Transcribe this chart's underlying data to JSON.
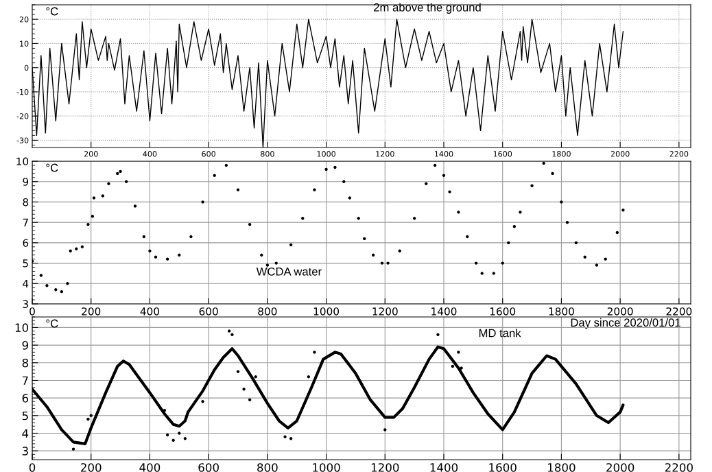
{
  "chart_data": [
    {
      "type": "line",
      "title": "2m above the ground",
      "ylabel": "°C",
      "xlim": [
        0,
        2240
      ],
      "ylim": [
        -33,
        26
      ],
      "xticks": [
        200,
        400,
        600,
        800,
        1000,
        1200,
        1400,
        1600,
        1800,
        2000,
        2200
      ],
      "yticks": [
        -30,
        -20,
        -10,
        0,
        10,
        20
      ],
      "grid": true,
      "series": [
        {
          "color": "#000000",
          "x": [
            0,
            15,
            30,
            45,
            60,
            80,
            100,
            125,
            150,
            160,
            170,
            185,
            200,
            225,
            250,
            255,
            260,
            280,
            300,
            315,
            330,
            355,
            380,
            400,
            420,
            440,
            460,
            475,
            490,
            495,
            500,
            525,
            550,
            575,
            600,
            620,
            640,
            650,
            660,
            680,
            700,
            720,
            740,
            755,
            770,
            785,
            800,
            825,
            850,
            875,
            900,
            920,
            940,
            970,
            1000,
            1015,
            1030,
            1045,
            1060,
            1075,
            1090,
            1110,
            1130,
            1165,
            1200,
            1220,
            1240,
            1270,
            1300,
            1325,
            1350,
            1375,
            1400,
            1425,
            1450,
            1475,
            1500,
            1525,
            1550,
            1575,
            1600,
            1630,
            1660,
            1665,
            1670,
            1685,
            1700,
            1730,
            1760,
            1780,
            1800,
            1815,
            1830,
            1855,
            1880,
            1905,
            1930,
            1955,
            1980,
            1995,
            2010
          ],
          "values": [
            0,
            -28,
            5,
            -27,
            8,
            -22,
            10,
            -15,
            14,
            -5,
            19,
            0,
            16,
            3,
            13,
            3,
            10,
            -1,
            12,
            -15,
            5,
            -18,
            7,
            -22,
            6,
            -19,
            8,
            -15,
            11,
            -10,
            18,
            0,
            19,
            3,
            16,
            1,
            14,
            -2,
            10,
            -9,
            5,
            -18,
            0,
            -25,
            2,
            -33,
            3,
            -20,
            10,
            -10,
            18,
            0,
            20,
            2,
            13,
            0,
            12,
            -8,
            5,
            -15,
            3,
            -27,
            8,
            -18,
            12,
            -8,
            20,
            0,
            16,
            3,
            15,
            2,
            10,
            -10,
            3,
            -20,
            0,
            -26,
            5,
            -18,
            15,
            -5,
            15,
            3,
            17,
            2,
            20,
            -2,
            10,
            -10,
            5,
            -20,
            0,
            -28,
            3,
            -20,
            10,
            -10,
            18,
            0,
            15
          ]
        }
      ]
    },
    {
      "type": "scatter",
      "title": "WCDA water",
      "ylabel": "°C",
      "xlabel": "Day since 2020/01/01",
      "xlim": [
        0,
        2240
      ],
      "ylim": [
        3,
        10
      ],
      "xticks": [
        0,
        200,
        400,
        600,
        800,
        1000,
        1200,
        1400,
        1600,
        1800,
        2000,
        2200
      ],
      "yticks": [
        3,
        4,
        5,
        6,
        7,
        8,
        9,
        10
      ],
      "grid": true,
      "series": [
        {
          "color": "#000000",
          "x": [
            0,
            30,
            50,
            80,
            100,
            120,
            130,
            150,
            170,
            190,
            205,
            210,
            240,
            260,
            290,
            300,
            320,
            350,
            380,
            400,
            420,
            460,
            500,
            540,
            580,
            620,
            660,
            700,
            740,
            780,
            800,
            830,
            880,
            920,
            960,
            1000,
            1030,
            1060,
            1080,
            1110,
            1130,
            1160,
            1190,
            1210,
            1250,
            1300,
            1340,
            1370,
            1400,
            1420,
            1450,
            1480,
            1510,
            1530,
            1570,
            1600,
            1620,
            1640,
            1660,
            1700,
            1740,
            1770,
            1800,
            1820,
            1850,
            1880,
            1920,
            1950,
            1990,
            2010
          ],
          "values": [
            5.1,
            4.4,
            3.9,
            3.7,
            3.6,
            4.0,
            5.6,
            5.7,
            5.8,
            6.9,
            7.3,
            8.2,
            8.3,
            8.9,
            9.4,
            9.5,
            9.0,
            7.8,
            6.3,
            5.6,
            5.3,
            5.2,
            5.4,
            6.3,
            8.0,
            9.3,
            9.8,
            8.6,
            6.9,
            5.4,
            4.9,
            5.0,
            5.9,
            7.2,
            8.6,
            9.6,
            9.7,
            9.0,
            8.2,
            7.2,
            6.2,
            5.4,
            5.0,
            5.0,
            5.6,
            7.2,
            8.9,
            9.8,
            9.3,
            8.5,
            7.5,
            6.3,
            5.0,
            4.5,
            4.5,
            5.0,
            6.0,
            6.8,
            7.5,
            8.8,
            9.9,
            9.4,
            8.0,
            7.0,
            6.0,
            5.3,
            4.9,
            5.2,
            6.5,
            7.6
          ]
        }
      ]
    },
    {
      "type": "line",
      "title": "MD tank",
      "ylabel": "°C",
      "xlim": [
        0,
        2240
      ],
      "ylim": [
        2.5,
        10.6
      ],
      "xticks": [
        0,
        200,
        400,
        600,
        800,
        1000,
        1200,
        1400,
        1600,
        1800,
        2000,
        2200
      ],
      "yticks": [
        3,
        4,
        5,
        6,
        7,
        8,
        9,
        10
      ],
      "grid": true,
      "series": [
        {
          "color": "#000000",
          "x": [
            0,
            50,
            100,
            140,
            180,
            200,
            250,
            290,
            310,
            330,
            400,
            450,
            480,
            500,
            520,
            530,
            580,
            620,
            650,
            680,
            700,
            750,
            800,
            840,
            870,
            900,
            950,
            990,
            1030,
            1050,
            1100,
            1150,
            1200,
            1230,
            1260,
            1300,
            1350,
            1380,
            1400,
            1450,
            1500,
            1550,
            1600,
            1640,
            1700,
            1750,
            1780,
            1850,
            1920,
            1960,
            2000,
            2010
          ],
          "values": [
            6.5,
            5.5,
            4.2,
            3.5,
            3.4,
            4.3,
            6.3,
            7.8,
            8.1,
            7.9,
            6.3,
            5.1,
            4.5,
            4.4,
            4.7,
            5.2,
            6.4,
            7.6,
            8.3,
            8.8,
            8.4,
            7.1,
            5.7,
            4.7,
            4.3,
            4.7,
            6.6,
            8.2,
            8.6,
            8.5,
            7.4,
            5.9,
            4.9,
            4.9,
            5.4,
            6.6,
            8.2,
            8.9,
            8.8,
            7.7,
            6.3,
            5.1,
            4.2,
            5.2,
            7.4,
            8.4,
            8.2,
            6.8,
            5.0,
            4.6,
            5.2,
            5.6
          ]
        },
        {
          "type": "scatter",
          "color": "#000000",
          "x": [
            140,
            190,
            200,
            450,
            460,
            480,
            500,
            520,
            580,
            610,
            640,
            670,
            680,
            700,
            720,
            740,
            760,
            840,
            860,
            880,
            940,
            960,
            1200,
            1380,
            1430,
            1450,
            1460
          ],
          "values": [
            3.1,
            4.8,
            5.0,
            5.3,
            3.9,
            3.6,
            4.0,
            3.7,
            5.8,
            null,
            null,
            9.8,
            9.6,
            7.5,
            6.5,
            5.9,
            7.2,
            null,
            3.8,
            3.7,
            7.2,
            8.6,
            4.2,
            9.6,
            7.8,
            8.6,
            7.7
          ]
        }
      ]
    }
  ]
}
